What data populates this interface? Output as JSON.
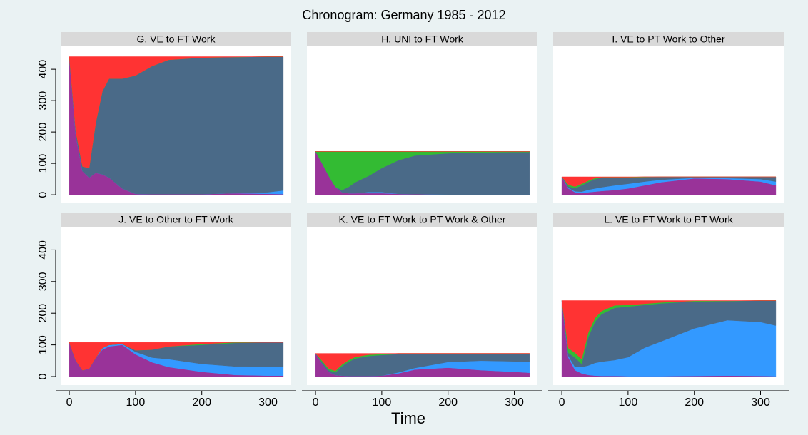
{
  "title": "Chronogram: Germany 1985 - 2012",
  "xlabel": "Time",
  "chart_data": [
    {
      "type": "area",
      "title": "G. VE to FT Work",
      "xlim": [
        -13,
        335
      ],
      "ylim": [
        -27,
        473
      ],
      "yticks": [
        0,
        100,
        200,
        300,
        400
      ],
      "x": [
        0,
        10,
        20,
        30,
        40,
        50,
        60,
        80,
        100,
        125,
        150,
        200,
        250,
        300,
        323
      ],
      "series": [
        {
          "color": "#993399",
          "values": [
            440,
            190,
            75,
            55,
            70,
            65,
            55,
            20,
            3,
            2,
            2,
            2,
            5,
            3,
            2
          ]
        },
        {
          "color": "#3399ff",
          "values": [
            0,
            0,
            0,
            0,
            0,
            0,
            0,
            0,
            0,
            0,
            0,
            0,
            0,
            5,
            12
          ]
        },
        {
          "color": "#4a6a88",
          "values": [
            0,
            10,
            15,
            30,
            160,
            265,
            315,
            350,
            377,
            408,
            428,
            435,
            434,
            432,
            426
          ]
        },
        {
          "color": "#33bb33",
          "values": [
            0,
            0,
            0,
            0,
            0,
            0,
            0,
            0,
            0,
            0,
            0,
            0,
            0,
            0,
            0
          ]
        },
        {
          "color": "#ff3333",
          "values": [
            0,
            240,
            350,
            355,
            210,
            110,
            70,
            70,
            60,
            30,
            10,
            3,
            1,
            0,
            0
          ]
        }
      ]
    },
    {
      "type": "area",
      "title": "H. UNI to FT Work",
      "xlim": [
        -13,
        335
      ],
      "ylim": [
        -27,
        473
      ],
      "x": [
        0,
        10,
        20,
        30,
        40,
        50,
        60,
        80,
        100,
        125,
        150,
        200,
        250,
        300,
        323
      ],
      "series": [
        {
          "color": "#993399",
          "values": [
            138,
            100,
            60,
            25,
            8,
            5,
            5,
            5,
            5,
            3,
            2,
            1,
            1,
            1,
            1
          ]
        },
        {
          "color": "#3399ff",
          "values": [
            0,
            0,
            0,
            0,
            0,
            0,
            0,
            4,
            4,
            0,
            0,
            0,
            0,
            0,
            0
          ]
        },
        {
          "color": "#4a6a88",
          "values": [
            0,
            0,
            0,
            0,
            7,
            20,
            35,
            51,
            76,
            107,
            123,
            131,
            134,
            135,
            135
          ]
        },
        {
          "color": "#33bb33",
          "values": [
            0,
            38,
            78,
            113,
            123,
            113,
            98,
            78,
            53,
            28,
            13,
            6,
            3,
            2,
            2
          ]
        },
        {
          "color": "#ff3333",
          "values": [
            0,
            0,
            0,
            0,
            0,
            0,
            0,
            0,
            0,
            0,
            0,
            0,
            0,
            0,
            0
          ]
        }
      ]
    },
    {
      "type": "area",
      "title": "I. VE to PT Work to Other",
      "xlim": [
        -13,
        335
      ],
      "ylim": [
        -27,
        473
      ],
      "x": [
        0,
        10,
        20,
        30,
        40,
        50,
        60,
        80,
        100,
        125,
        150,
        200,
        250,
        300,
        323
      ],
      "series": [
        {
          "color": "#993399",
          "values": [
            57,
            20,
            8,
            5,
            8,
            10,
            12,
            15,
            20,
            30,
            40,
            52,
            50,
            42,
            30
          ]
        },
        {
          "color": "#3399ff",
          "values": [
            0,
            2,
            3,
            5,
            8,
            10,
            12,
            15,
            15,
            12,
            8,
            2,
            3,
            8,
            12
          ]
        },
        {
          "color": "#4a6a88",
          "values": [
            0,
            5,
            10,
            20,
            25,
            30,
            30,
            25,
            20,
            14,
            9,
            3,
            4,
            7,
            15
          ]
        },
        {
          "color": "#33bb33",
          "values": [
            0,
            5,
            5,
            5,
            4,
            3,
            2,
            1,
            1,
            1,
            0,
            0,
            0,
            0,
            0
          ]
        },
        {
          "color": "#ff3333",
          "values": [
            0,
            25,
            31,
            22,
            12,
            4,
            1,
            1,
            1,
            0,
            0,
            0,
            0,
            0,
            0
          ]
        }
      ]
    },
    {
      "type": "area",
      "title": "J. VE to Other to FT Work",
      "xlim": [
        -13,
        335
      ],
      "ylim": [
        -27,
        473
      ],
      "yticks": [
        0,
        100,
        200,
        300,
        400
      ],
      "xticks": [
        0,
        100,
        200,
        300
      ],
      "x": [
        0,
        10,
        20,
        30,
        40,
        50,
        60,
        80,
        100,
        125,
        150,
        200,
        250,
        300,
        323
      ],
      "series": [
        {
          "color": "#993399",
          "values": [
            108,
            50,
            20,
            25,
            60,
            85,
            95,
            100,
            70,
            45,
            30,
            15,
            5,
            3,
            3
          ]
        },
        {
          "color": "#3399ff",
          "values": [
            0,
            0,
            0,
            0,
            0,
            5,
            5,
            3,
            8,
            15,
            25,
            25,
            27,
            28,
            28
          ]
        },
        {
          "color": "#4a6a88",
          "values": [
            0,
            0,
            0,
            0,
            0,
            0,
            0,
            0,
            5,
            25,
            40,
            60,
            74,
            77,
            77
          ]
        },
        {
          "color": "#33bb33",
          "values": [
            0,
            0,
            0,
            0,
            0,
            0,
            0,
            0,
            0,
            0,
            0,
            3,
            2,
            0,
            0
          ]
        },
        {
          "color": "#ff3333",
          "values": [
            0,
            58,
            88,
            83,
            48,
            18,
            8,
            5,
            25,
            23,
            13,
            5,
            0,
            0,
            0
          ]
        }
      ]
    },
    {
      "type": "area",
      "title": "K. VE to FT Work to PT Work & Other",
      "xlim": [
        -13,
        335
      ],
      "ylim": [
        -27,
        473
      ],
      "xticks": [
        0,
        100,
        200,
        300
      ],
      "x": [
        0,
        10,
        20,
        30,
        40,
        50,
        60,
        80,
        100,
        125,
        150,
        200,
        250,
        300,
        323
      ],
      "series": [
        {
          "color": "#993399",
          "values": [
            73,
            40,
            15,
            5,
            3,
            2,
            2,
            2,
            3,
            10,
            22,
            28,
            20,
            15,
            12
          ]
        },
        {
          "color": "#3399ff",
          "values": [
            0,
            0,
            0,
            0,
            0,
            0,
            0,
            0,
            0,
            3,
            5,
            18,
            30,
            33,
            35
          ]
        },
        {
          "color": "#4a6a88",
          "values": [
            0,
            5,
            5,
            8,
            30,
            45,
            55,
            63,
            65,
            58,
            44,
            25,
            21,
            23,
            24
          ]
        },
        {
          "color": "#33bb33",
          "values": [
            0,
            5,
            5,
            5,
            5,
            5,
            5,
            4,
            3,
            2,
            2,
            2,
            2,
            2,
            2
          ]
        },
        {
          "color": "#ff3333",
          "values": [
            0,
            23,
            48,
            55,
            35,
            21,
            11,
            4,
            2,
            0,
            0,
            0,
            0,
            0,
            0
          ]
        }
      ]
    },
    {
      "type": "area",
      "title": "L. VE to FT Work to PT Work",
      "xlim": [
        -13,
        335
      ],
      "ylim": [
        -27,
        473
      ],
      "xticks": [
        0,
        100,
        200,
        300
      ],
      "x": [
        0,
        10,
        20,
        30,
        40,
        50,
        60,
        80,
        100,
        125,
        150,
        200,
        250,
        300,
        323
      ],
      "series": [
        {
          "color": "#993399",
          "values": [
            240,
            60,
            20,
            10,
            5,
            3,
            2,
            2,
            1,
            1,
            1,
            2,
            3,
            2,
            1
          ]
        },
        {
          "color": "#3399ff",
          "values": [
            0,
            5,
            10,
            20,
            30,
            40,
            45,
            50,
            60,
            90,
            110,
            150,
            175,
            170,
            160
          ]
        },
        {
          "color": "#4a6a88",
          "values": [
            0,
            10,
            30,
            10,
            90,
            130,
            150,
            165,
            160,
            135,
            120,
            85,
            60,
            68,
            79
          ]
        },
        {
          "color": "#33bb33",
          "values": [
            0,
            15,
            15,
            15,
            15,
            12,
            10,
            8,
            5,
            4,
            3,
            2,
            1,
            0,
            0
          ]
        },
        {
          "color": "#ff3333",
          "values": [
            0,
            150,
            165,
            185,
            100,
            55,
            33,
            15,
            14,
            10,
            6,
            1,
            1,
            0,
            0
          ]
        }
      ]
    }
  ]
}
